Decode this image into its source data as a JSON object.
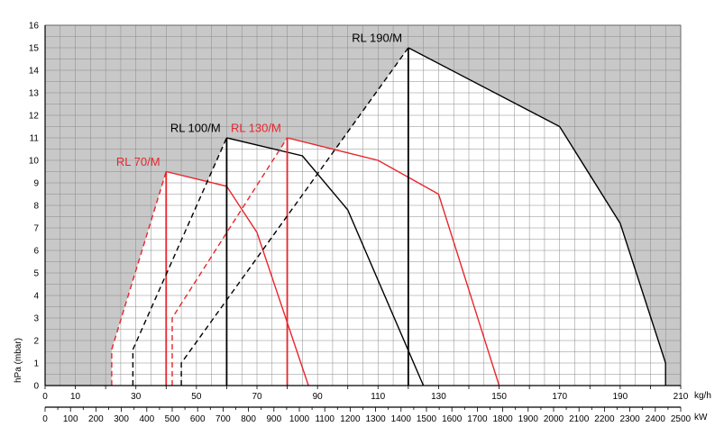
{
  "chart_data": {
    "type": "line",
    "title": "",
    "ylabel": "hPa (mbar)",
    "xlabel": "kg/h",
    "x2label": "kW",
    "xlim": [
      0,
      210
    ],
    "ylim": [
      0,
      16
    ],
    "x_ticks": [
      0,
      10,
      30,
      50,
      70,
      90,
      110,
      130,
      150,
      170,
      190,
      210
    ],
    "y_ticks": [
      0,
      1,
      2,
      3,
      4,
      5,
      6,
      7,
      8,
      9,
      10,
      11,
      12,
      13,
      14,
      15,
      16
    ],
    "kw_ticks": [
      0,
      100,
      200,
      300,
      400,
      500,
      600,
      700,
      800,
      900,
      1000,
      1100,
      1200,
      1300,
      1400,
      1500,
      1600,
      1700,
      1800,
      1900,
      2000,
      2100,
      2200,
      2300,
      2400,
      2500
    ],
    "kw_max": 2500,
    "grid": true,
    "colors": {
      "black": "#000000",
      "red": "#e8262c",
      "shade": "#c8c8c8"
    },
    "series": [
      {
        "name": "RL 70/M",
        "color": "#e8262c",
        "start_x": 22,
        "start_y": 1.6,
        "peak_x": 40,
        "peak_y": 9.5,
        "curve": [
          [
            40,
            9.5
          ],
          [
            60,
            8.85
          ],
          [
            70,
            6.8
          ],
          [
            87,
            0
          ]
        ],
        "label_x": 38,
        "label_y": 9.6
      },
      {
        "name": "RL 100/M",
        "color": "#000000",
        "start_x": 29,
        "start_y": 1.6,
        "peak_x": 60,
        "peak_y": 11,
        "curve": [
          [
            60,
            11
          ],
          [
            85,
            10.2
          ],
          [
            100,
            7.8
          ],
          [
            125,
            0
          ]
        ],
        "label_x": 58,
        "label_y": 11.1
      },
      {
        "name": "RL 130/M",
        "color": "#e8262c",
        "start_x": 42,
        "start_y": 3.0,
        "peak_x": 80,
        "peak_y": 11,
        "curve": [
          [
            80,
            11
          ],
          [
            110,
            10.0
          ],
          [
            130,
            8.5
          ],
          [
            150,
            0
          ]
        ],
        "label_x": 78,
        "label_y": 11.1
      },
      {
        "name": "RL 190/M",
        "color": "#000000",
        "start_x": 45,
        "start_y": 1.0,
        "peak_x": 120,
        "peak_y": 15,
        "curve": [
          [
            120,
            15
          ],
          [
            170,
            11.5
          ],
          [
            190,
            7.2
          ],
          [
            205,
            1.0
          ],
          [
            205,
            0
          ]
        ],
        "label_x": 118,
        "label_y": 15.1
      }
    ]
  }
}
